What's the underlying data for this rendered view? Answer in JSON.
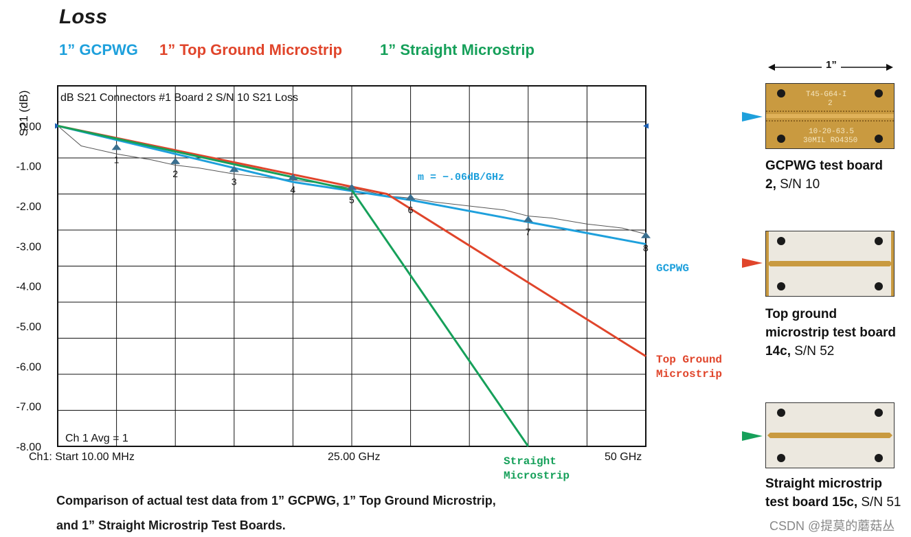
{
  "title": "Loss",
  "legend": [
    {
      "label": "1” GCPWG",
      "color": "#1ea0dc"
    },
    {
      "label": "1” Top Ground Microstrip",
      "color": "#e0452b"
    },
    {
      "label": "1” Straight Microstrip",
      "color": "#16a05a"
    }
  ],
  "caption": {
    "line1": "Comparison of actual test data from 1” GCPWG, 1” Top Ground Microstrip,",
    "line2": "and 1” Straight Microstrip Test Boards."
  },
  "chart_data": {
    "type": "line",
    "title": "dB S21 Connectors #1 Board 2 S/N 10 S21 Loss",
    "ylabel": "S21 (dB)",
    "ylim": [
      -8.0,
      1.0
    ],
    "xlim": [
      0.01,
      50
    ],
    "y_ticks": [
      "0.00",
      "-1.00",
      "-2.00",
      "-3.00",
      "-4.00",
      "-5.00",
      "-6.00",
      "-7.00",
      "-8.00"
    ],
    "x_tick_labels": {
      "start": "Ch1: Start  10.00 MHz",
      "mid": "25.00 GHz",
      "end": "50 GHz"
    },
    "status": "Ch 1 Avg =    1",
    "slope_annotation": "m = −.06dB/GHz",
    "series": [
      {
        "name": "GCPWG",
        "label": "GCPWG",
        "color": "#1ea0dc",
        "x": [
          0.01,
          20,
          30,
          50
        ],
        "y": [
          0.0,
          -1.4,
          -1.85,
          -2.95
        ]
      },
      {
        "name": "Top Ground Microstrip",
        "label": "Top Ground\nMicrostrip",
        "color": "#e0452b",
        "x": [
          0.01,
          28,
          50
        ],
        "y": [
          0.0,
          -1.7,
          -5.75
        ]
      },
      {
        "name": "Straight Microstrip",
        "label": "Straight\nMicrostrip",
        "color": "#16a05a",
        "x": [
          0.01,
          25,
          40
        ],
        "y": [
          0.0,
          -1.6,
          -8.0
        ]
      }
    ],
    "measured_trace": {
      "x": [
        0.01,
        2,
        5,
        8,
        10,
        12,
        15,
        18,
        20,
        22,
        25,
        28,
        30,
        32,
        35,
        38,
        40,
        42,
        45,
        48,
        50
      ],
      "y": [
        0.0,
        -0.5,
        -0.7,
        -0.85,
        -0.98,
        -1.05,
        -1.2,
        -1.3,
        -1.35,
        -1.42,
        -1.55,
        -1.75,
        -1.8,
        -1.9,
        -2.0,
        -2.1,
        -2.25,
        -2.3,
        -2.45,
        -2.55,
        -2.7
      ]
    },
    "markers": [
      {
        "label": "1",
        "x": 5,
        "y": -0.55
      },
      {
        "label": "2",
        "x": 10,
        "y": -0.9
      },
      {
        "label": "3",
        "x": 15,
        "y": -1.1
      },
      {
        "label": "4",
        "x": 20,
        "y": -1.3
      },
      {
        "label": "5",
        "x": 25,
        "y": -1.55
      },
      {
        "label": "6",
        "x": 30,
        "y": -1.8
      },
      {
        "label": "7",
        "x": 40,
        "y": -2.35
      },
      {
        "label": "8",
        "x": 50,
        "y": -2.75
      }
    ]
  },
  "boards": {
    "dimension": "1”",
    "items": [
      {
        "name_bold": "GCPWG test board 2,",
        "serial": " S/N 10",
        "pcb_text1": "T45-G64-I",
        "pcb_text2": "2",
        "pcb_text3": "10-20-63.5",
        "pcb_text4": "30MIL RO4350",
        "arrow_color": "#1ea0dc"
      },
      {
        "name_bold": "Top ground microstrip test board 14c,",
        "serial": " S/N 52",
        "arrow_color": "#e0452b"
      },
      {
        "name_bold": "Straight microstrip test board 15c,",
        "serial": " S/N 51",
        "arrow_color": "#16a05a"
      }
    ]
  },
  "watermark": "CSDN @提莫的蘑菇丛"
}
